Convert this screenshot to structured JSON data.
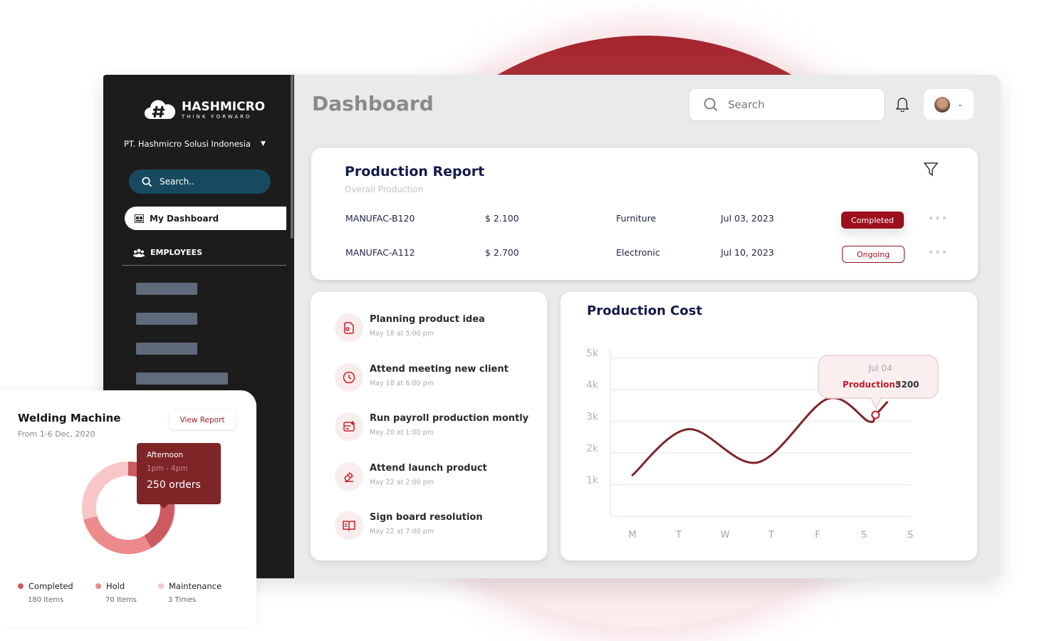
{
  "colors": {
    "accent": "#9b101c",
    "sidebar": "#1c1c1c",
    "sidebar_search": "#174a5f",
    "line": "#7f2528"
  },
  "sidebar": {
    "logo": {
      "name": "HASHMICRO",
      "tagline": "THINK FORWARD"
    },
    "company": "PT. Hashmicro Solusi Indonesia",
    "search_placeholder": "Search..",
    "items": [
      {
        "label": "My Dashboard",
        "icon": "dashboard-icon",
        "active": true
      },
      {
        "label": "EMPLOYEES",
        "icon": "users-icon"
      }
    ]
  },
  "header": {
    "title": "Dashboard",
    "search_placeholder": "Search"
  },
  "production_report": {
    "title": "Production Report",
    "subtitle": "Overall Production",
    "rows": [
      {
        "code": "MANUFAC-B120",
        "amount": "$ 2.100",
        "category": "Furniture",
        "date": "Jul 03, 2023",
        "status": "Completed"
      },
      {
        "code": "MANUFAC-A112",
        "amount": "$ 2.700",
        "category": "Electronic",
        "date": "Jul 10, 2023",
        "status": "Ongoing"
      }
    ]
  },
  "activities": [
    {
      "title": "Planning product idea",
      "time": "May 18 at 5:00 pm",
      "icon": "document-icon"
    },
    {
      "title": "Attend meeting new client",
      "time": "May 18 at 6:00 pm",
      "icon": "clock-icon"
    },
    {
      "title": "Run payroll production montly",
      "time": "May 20 at 1:00 pm",
      "icon": "payroll-icon"
    },
    {
      "title": "Attend launch product",
      "time": "May 22 at 2:00 pm",
      "icon": "eraser-icon"
    },
    {
      "title": "Sign board resolution",
      "time": "May 22 at 7:00 pm",
      "icon": "book-icon"
    }
  ],
  "chart_data": {
    "type": "line",
    "title": "Production Cost",
    "categories": [
      "M",
      "T",
      "W",
      "T",
      "F",
      "S",
      "S"
    ],
    "yticks": [
      "1k",
      "2k",
      "3k",
      "4k",
      "5k"
    ],
    "ylim": [
      0,
      5500
    ],
    "grid": true,
    "points": [
      [
        0,
        1300
      ],
      [
        1.2,
        2750
      ],
      [
        2.7,
        1700
      ],
      [
        4.2,
        3700
      ],
      [
        5.1,
        3000
      ],
      [
        5.25,
        3200
      ],
      [
        5.5,
        3600
      ]
    ],
    "tooltip": {
      "date": "Jul 04",
      "label": "Production:",
      "value": "3200"
    }
  },
  "welding": {
    "title": "Welding Machine",
    "subtitle": "From 1-6 Dec, 2020",
    "button": "View Report",
    "tooltip": {
      "title": "Afternoon",
      "time": "1pm - 4pm",
      "value": "250 orders"
    },
    "legend": [
      {
        "label": "Completed",
        "value": "180 Items",
        "color": "#cc5a5f"
      },
      {
        "label": "Hold",
        "value": "70 Items",
        "color": "#ec8a8c"
      },
      {
        "label": "Maintenance",
        "value": "3 Times",
        "color": "#f9c6c8"
      }
    ]
  }
}
